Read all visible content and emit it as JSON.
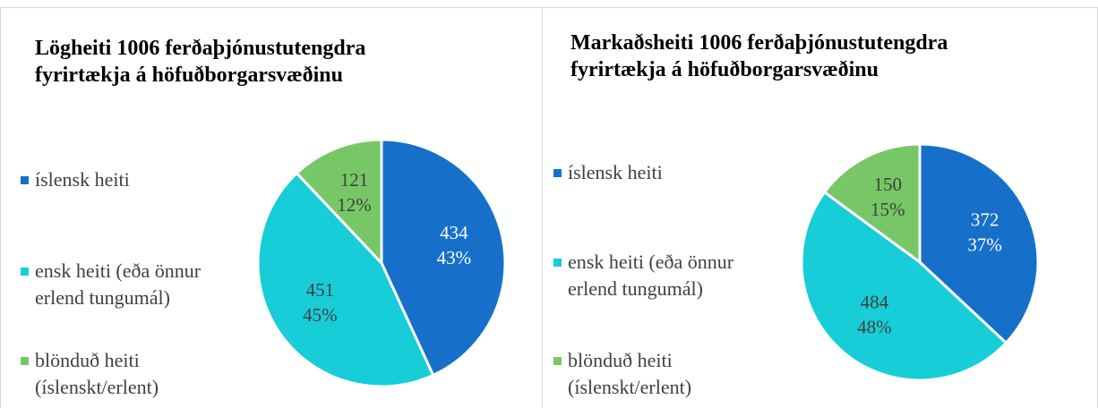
{
  "chart_data": [
    {
      "type": "pie",
      "title": "Lögheiti 1006 ferðaþjónustutengdra fyrirtækja á höfuðborgarsvæðinu",
      "categories": [
        "íslensk heiti",
        "ensk heiti (eða önnur erlend tungumál)",
        "blönduð heiti (íslenskt/erlent)"
      ],
      "values": [
        434,
        451,
        121
      ],
      "percentages": [
        "43%",
        "45%",
        "12%"
      ],
      "colors": [
        "#1670c9",
        "#17cdd8",
        "#77c766"
      ]
    },
    {
      "type": "pie",
      "title": "Markaðsheiti 1006 ferðaþjónustutengdra fyrirtækja á höfuðborgarsvæðinu",
      "categories": [
        "íslensk heiti",
        "ensk heiti (eða önnur erlend tungumál)",
        "blönduð heiti (íslenskt/erlent)"
      ],
      "values": [
        372,
        484,
        150
      ],
      "percentages": [
        "37%",
        "48%",
        "15%"
      ],
      "colors": [
        "#1670c9",
        "#17cdd8",
        "#77c766"
      ]
    }
  ]
}
